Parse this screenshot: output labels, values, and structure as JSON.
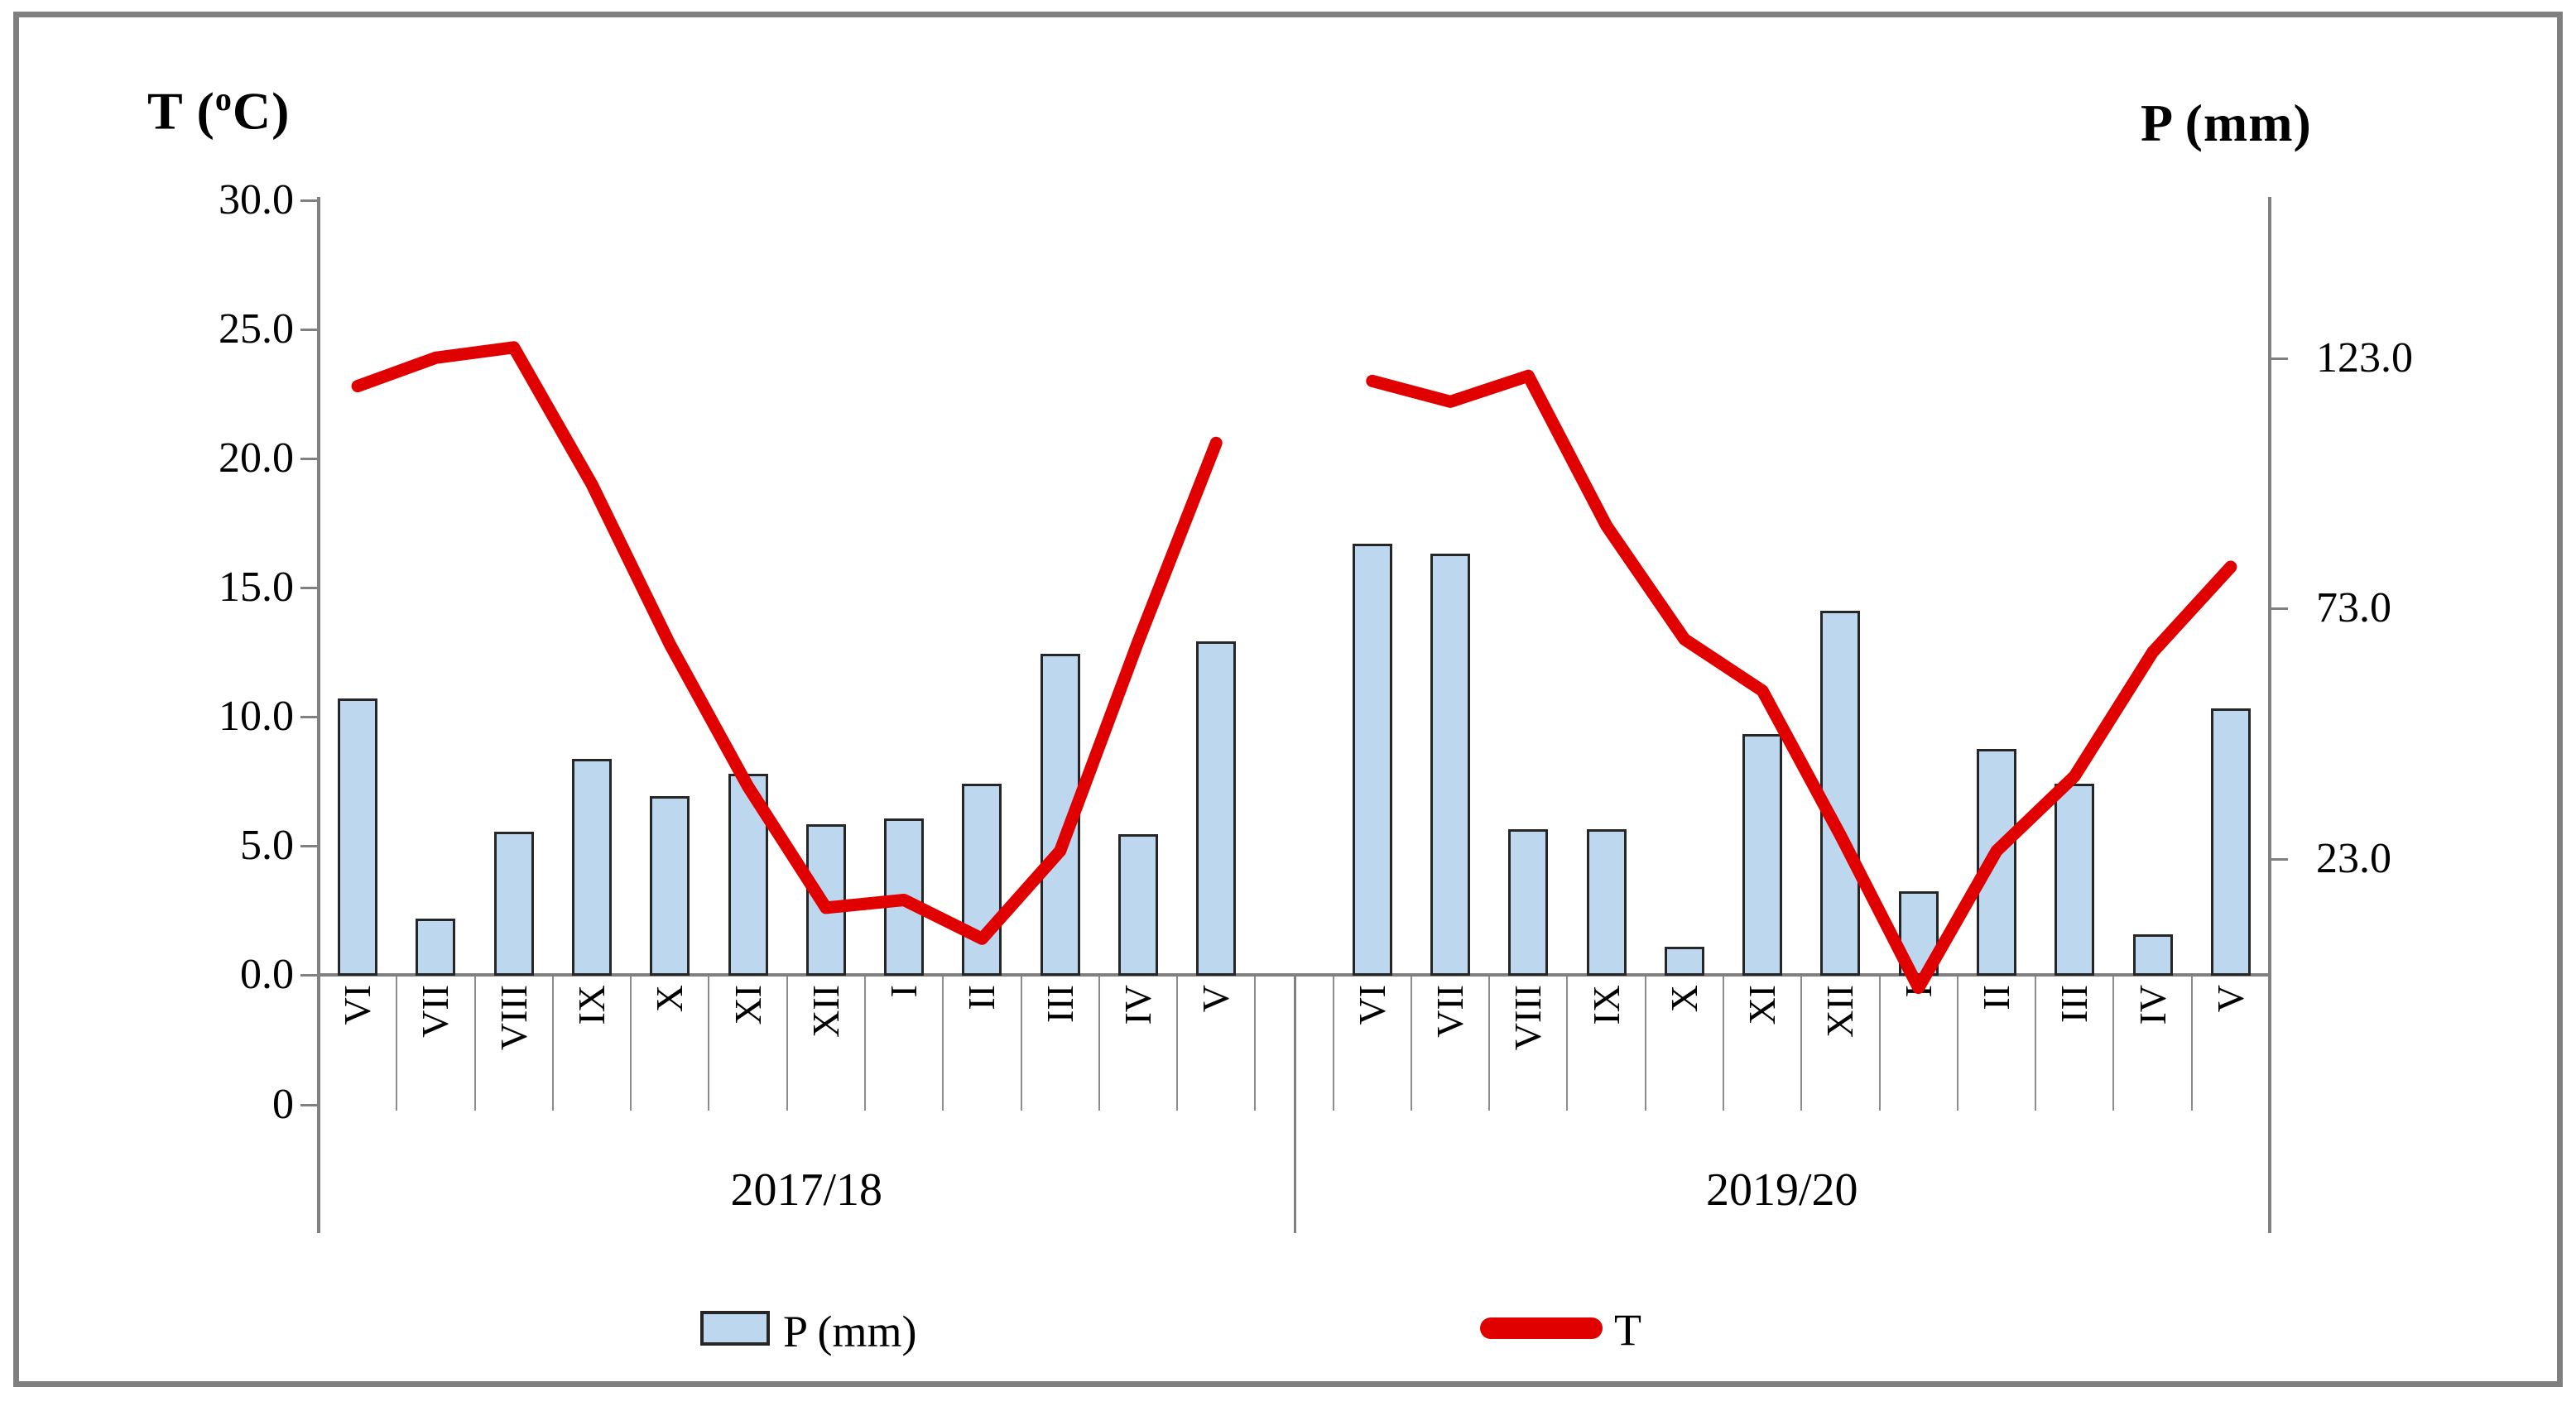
{
  "chart_data": {
    "type": "bar+line",
    "title_left_parts": {
      "p1": "T (",
      "sup": "o",
      "p2": "C)"
    },
    "title_right": "P (mm)",
    "categories": [
      "VI",
      "VII",
      "VIII",
      "IX",
      "X",
      "XI",
      "XII",
      "I",
      "II",
      "III",
      "IV",
      "V"
    ],
    "group_labels": [
      "2017/18",
      "2019/20"
    ],
    "left_axis": {
      "label": "T (oC)",
      "tick_labels": [
        "30.0",
        "25.0",
        "20.0",
        "15.0",
        "10.0",
        "5.0",
        "0.0"
      ],
      "tick_values": [
        30,
        25,
        20,
        15,
        10,
        5,
        0
      ],
      "origin_label": "0",
      "range": [
        0,
        30
      ]
    },
    "right_axis": {
      "label": "P (mm)",
      "tick_labels": [
        "123.0",
        "73.0",
        "23.0"
      ],
      "tick_values": [
        123,
        73,
        23
      ],
      "range": [
        0,
        155
      ]
    },
    "series": [
      {
        "name": "P (mm)",
        "type": "bar",
        "color": "#bdd7ee",
        "border_color": "#262626",
        "groups": [
          {
            "season": "2017/18",
            "values": [
              55,
              11,
              28.5,
              43,
              35.5,
              40,
              30,
              31,
              38,
              64,
              28,
              66.5
            ]
          },
          {
            "season": "2019/20",
            "values": [
              86,
              84,
              29,
              29,
              5.5,
              48,
              72.5,
              16.5,
              45,
              38,
              8,
              53
            ]
          }
        ]
      },
      {
        "name": "T",
        "type": "line",
        "color": "#e00000",
        "groups": [
          {
            "season": "2017/18",
            "values": [
              22.8,
              23.9,
              24.3,
              19.0,
              12.8,
              7.3,
              2.6,
              2.9,
              1.4,
              4.8,
              12.9,
              20.6
            ]
          },
          {
            "season": "2019/20",
            "values": [
              23.0,
              22.2,
              23.2,
              17.4,
              13.0,
              11.0,
              5.4,
              -0.5,
              4.8,
              7.7,
              12.5,
              15.8
            ]
          }
        ]
      }
    ],
    "legend": {
      "position": "bottom",
      "items": [
        {
          "label": "P (mm)",
          "swatch": "bar"
        },
        {
          "label": "T",
          "swatch": "line"
        }
      ]
    },
    "grid": "off"
  }
}
